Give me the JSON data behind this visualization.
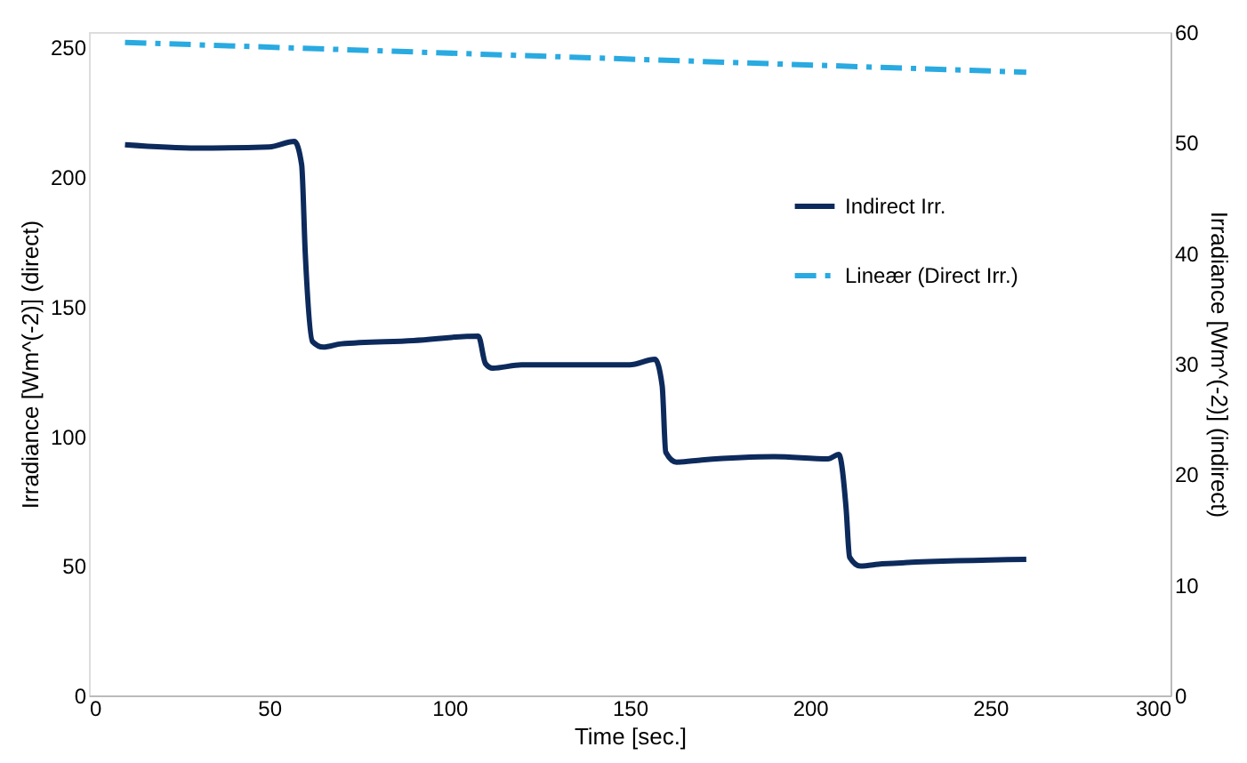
{
  "chart_data": {
    "type": "line",
    "xlabel": "Time [sec.]",
    "ylabel": "Irradiance [Wm^(-2)] (direct)",
    "y2label": "Irradiance [Wm^(-2)] (indirect)",
    "xlim": [
      0,
      300
    ],
    "xticks": [
      0,
      50,
      100,
      150,
      200,
      250,
      300
    ],
    "ylim": [
      0,
      256
    ],
    "yticks": [
      0,
      50,
      100,
      150,
      200,
      250
    ],
    "y2lim": [
      0,
      60
    ],
    "y2ticks": [
      0,
      10,
      20,
      30,
      40,
      50,
      60
    ],
    "grid": false,
    "legend": "right",
    "marker": "none",
    "series": [
      {
        "name": "Indirect Irr.",
        "color": "#0d2a5c",
        "axis": "y2",
        "line_style": "solid",
        "x": [
          10,
          30,
          50,
          57,
          59,
          60,
          62,
          65,
          70,
          90,
          108,
          110,
          112,
          120,
          150,
          157,
          159,
          160,
          163,
          170,
          190,
          205,
          208,
          210,
          211,
          214,
          220,
          260
        ],
        "values": [
          49.8,
          49.5,
          49.6,
          50.1,
          48,
          40,
          32,
          31.5,
          31.8,
          32.1,
          32.5,
          30,
          29.6,
          29.9,
          29.9,
          30.4,
          28,
          22,
          21.1,
          21.3,
          21.6,
          21.4,
          21.8,
          17,
          12.5,
          11.7,
          11.9,
          12.3
        ]
      },
      {
        "name": "Lineær  (Direct Irr.)",
        "color": "#29aae1",
        "axis": "y",
        "line_style": "dashed",
        "x": [
          10,
          260
        ],
        "values": [
          252,
          240.5
        ]
      }
    ]
  }
}
